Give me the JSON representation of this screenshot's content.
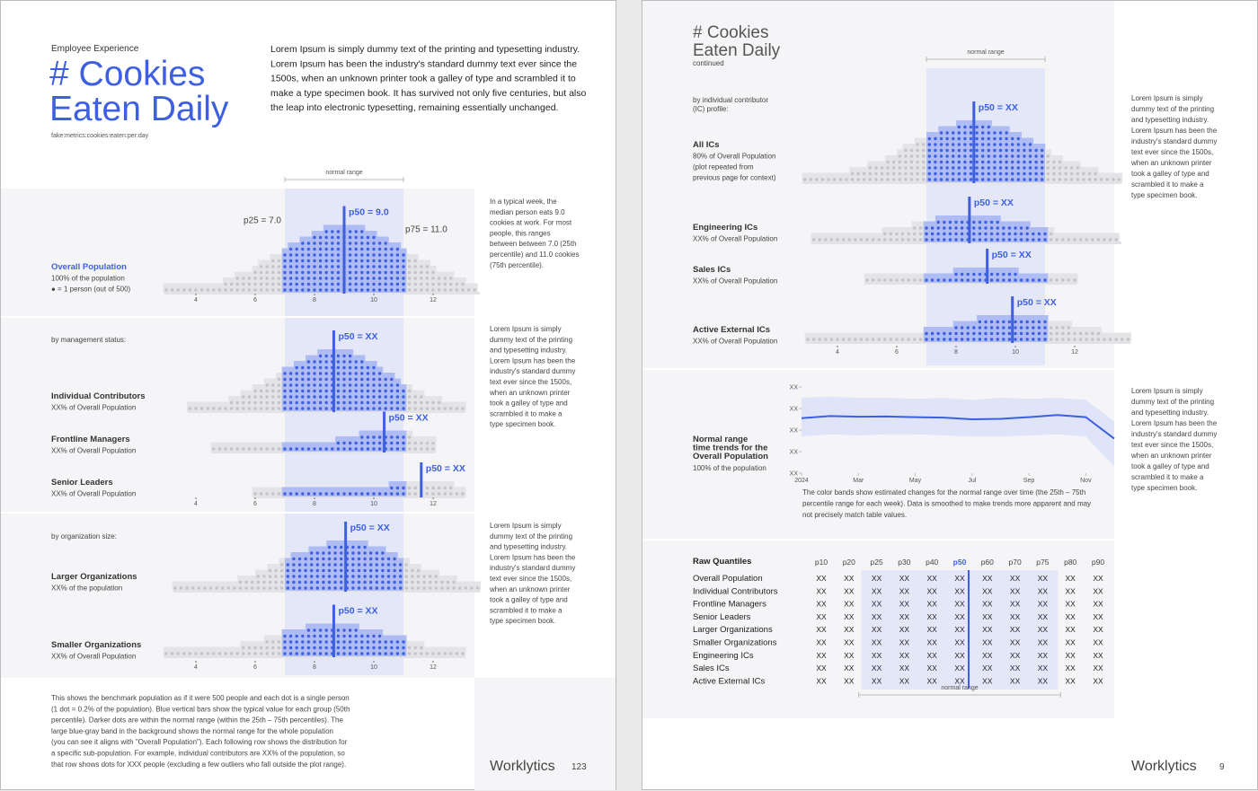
{
  "left_page": {
    "kicker": "Employee Experience",
    "title_lines": [
      "# Cookies",
      "Eaten Daily"
    ],
    "metric": "fake:metrics:cookies:eaten:per:day",
    "intro_lines": [
      "Lorem Ipsum is simply dummy text of the printing and typesetting industry.",
      "Lorem Ipsum has been the industry's standard dummy text ever since the",
      "1500s, when an unknown printer took a galley of type and scrambled it to",
      "make a type specimen book. It has survived not only five centuries, but also",
      "the leap into electronic typesetting, remaining essentially unchanged."
    ],
    "normal_range_label": "normal range",
    "normal_range": [
      7,
      11
    ],
    "xticks": [
      4,
      6,
      8,
      10,
      12
    ],
    "p25_label": "p25 = 7.0",
    "p75_label": "p75 = 11.0",
    "sections": [
      {
        "rows": [
          {
            "name": "Overall Population",
            "lines": [
              "100% of the population",
              "● = 1 person (out of 500)"
            ],
            "p50_label": "p50 = 9.0",
            "p50": 9,
            "dots_range": [
              3,
              13.5
            ],
            "dots_peak": 11
          }
        ],
        "note_lines": [
          "In a typical week, the",
          "median person eats 9.0",
          "cookies at work. For most",
          "people, this ranges",
          "between between 7.0 (25th",
          "percentile) and 11.0 cookies",
          "(75th percentile)."
        ]
      },
      {
        "heading": "by management status:",
        "rows": [
          {
            "name": "Individual Contributors",
            "lines": [
              "XX% of Overall Population"
            ],
            "p50_label": "p50 = XX",
            "p50": 8.65,
            "dots_range": [
              3.8,
              13
            ],
            "dots_peak": 10
          },
          {
            "name": "Frontline Managers",
            "lines": [
              "XX% of Overall Population"
            ],
            "p50_label": "p50 = XX",
            "p50": 10.35,
            "dots_range": [
              4.6,
              12
            ],
            "dots_peak": 3
          },
          {
            "name": "Senior Leaders",
            "lines": [
              "XX% of Overall Population"
            ],
            "p50_label": "p50 = XX",
            "p50": 11.6,
            "dots_range": [
              6,
              13
            ],
            "dots_peak": 2
          }
        ],
        "note_lines": [
          "Lorem Ipsum is simply",
          "dummy text of the printing",
          "and typesetting industry.",
          "Lorem Ipsum has been the",
          "industry's standard dummy",
          "text ever since the 1500s,",
          "when an unknown printer",
          "took a galley of type and",
          "scrambled it to make a",
          "type specimen book."
        ]
      },
      {
        "heading": "by organization size:",
        "rows": [
          {
            "name": "Larger Organizations",
            "lines": [
              "XX% of the population"
            ],
            "p50_label": "p50 = XX",
            "p50": 9.05,
            "dots_range": [
              3.3,
              13.5
            ],
            "dots_peak": 8
          },
          {
            "name": "Smaller Organizations",
            "lines": [
              "XX% of Overall Population"
            ],
            "p50_label": "p50 = XX",
            "p50": 8.65,
            "dots_range": [
              3,
              13
            ],
            "dots_peak": 5
          }
        ],
        "note_lines": [
          "Lorem Ipsum is simply",
          "dummy text of the printing",
          "and typesetting industry.",
          "Lorem Ipsum has been the",
          "industry's standard dummy",
          "text ever since the 1500s,",
          "when an unknown printer",
          "took a galley of type and",
          "scrambled it to make a",
          "type specimen book."
        ]
      }
    ],
    "footnote_lines": [
      "This shows the benchmark population as if it were 500 people and each dot is a single person",
      "(1 dot = 0.2% of the population). Blue vertical bars show the typical value for each group (50th",
      "percentile). Darker dots are within the normal range (within the 25th – 75th percentiles). The",
      "large blue-gray band in the background shows the normal range for the whole population",
      "(you can see it aligns with \"Overall Population\"). Each following row shows the distribution for",
      "a specific sub-population. For example, individual contributors are XX% of the population, so",
      "that row shows dots for XXX people (excluding a few outliers who fall outside the plot range)."
    ],
    "brand": "Worklytics",
    "page_number": 123
  },
  "right_page": {
    "title_lines": [
      "# Cookies",
      "Eaten Daily"
    ],
    "continued": "continued",
    "normal_range_label": "normal range",
    "xticks": [
      4,
      6,
      8,
      10,
      12
    ],
    "heading_lines": [
      "by individual contributor",
      "(IC) profile:"
    ],
    "rows": [
      {
        "name": "All ICs",
        "lines": [
          "80% of Overall Population",
          "(plot repeated from",
          "previous page for context)"
        ],
        "p50_label": "p50 = XX",
        "p50": 8.6,
        "dots_range": [
          2.9,
          13.5
        ],
        "dots_peak": 10
      },
      {
        "name": "Engineering ICs",
        "lines": [
          "XX% of Overall Population"
        ],
        "p50_label": "p50 = XX",
        "p50": 8.45,
        "dots_range": [
          3.2,
          13.5
        ],
        "dots_peak": 4
      },
      {
        "name": "Sales ICs",
        "lines": [
          "XX% of Overall Population"
        ],
        "p50_label": "p50 = XX",
        "p50": 9.05,
        "dots_range": [
          5,
          12
        ],
        "dots_peak": 2
      },
      {
        "name": "Active External ICs",
        "lines": [
          "XX% of Overall Population"
        ],
        "p50_label": "p50 = XX",
        "p50": 9.9,
        "dots_range": [
          3,
          13.8
        ],
        "dots_peak": 4
      }
    ],
    "note_lines": [
      "Lorem Ipsum is simply",
      "dummy text of the printing",
      "and typesetting industry.",
      "Lorem Ipsum has been the",
      "industry's standard dummy",
      "text ever since the 1500s,",
      "when an unknown printer",
      "took a galley of type and",
      "scrambled it to make a",
      "type specimen book."
    ],
    "trend": {
      "type": "line",
      "title_lines": [
        "Normal range",
        "time trends for the",
        "Overall Population"
      ],
      "subtitle": "100% of the population",
      "x": [
        "2024-01",
        "2024-02",
        "2024-03",
        "2024-04",
        "2024-05",
        "2024-06",
        "2024-07",
        "2024-08",
        "2024-09",
        "2024-10",
        "2024-11",
        "2024-12"
      ],
      "xlim": [
        "2024-01",
        "2024-12"
      ],
      "xticks": [
        {
          "value": "2024-01",
          "label": "2024"
        },
        {
          "value": "2024-03",
          "label": "Mar"
        },
        {
          "value": "2024-05",
          "label": "May"
        },
        {
          "value": "2024-07",
          "label": "Jul"
        },
        {
          "value": "2024-09",
          "label": "Sep"
        },
        {
          "value": "2024-11",
          "label": "Nov"
        }
      ],
      "ylim": [
        0,
        4
      ],
      "yticks": [
        {
          "value": 4,
          "label": "XX"
        },
        {
          "value": 3,
          "label": "XX"
        },
        {
          "value": 2,
          "label": "XX"
        },
        {
          "value": 1,
          "label": "XX"
        },
        {
          "value": 0,
          "label": "XX"
        }
      ],
      "p50": [
        2.55,
        2.65,
        2.62,
        2.63,
        2.6,
        2.58,
        2.5,
        2.52,
        2.6,
        2.7,
        2.6,
        1.6
      ],
      "p75": [
        3.5,
        3.55,
        3.5,
        3.5,
        3.45,
        3.5,
        3.4,
        3.5,
        3.45,
        3.5,
        3.4,
        2.4
      ],
      "p25": [
        1.7,
        1.8,
        1.75,
        1.8,
        1.8,
        1.75,
        1.7,
        1.7,
        1.75,
        1.8,
        1.7,
        0.3
      ],
      "color": "#3d5fe0",
      "caption_lines": [
        "The color bands show estimated changes for the normal range over time (the 25th – 75th",
        "percentile range for each week). Data is smoothed to make trends more apparent and may",
        "not precisely match table values."
      ]
    },
    "trend_note_lines": [
      "Lorem Ipsum is simply",
      "dummy text of the printing",
      "and typesetting industry.",
      "Lorem Ipsum has been the",
      "industry's standard dummy",
      "text ever since the 1500s,",
      "when an unknown printer",
      "took a galley of type and",
      "scrambled it to make a",
      "type specimen book."
    ],
    "table": {
      "title": "Raw Quantiles",
      "columns": [
        "p10",
        "p20",
        "p25",
        "p30",
        "p40",
        "p50",
        "p60",
        "p70",
        "p75",
        "p80",
        "p90"
      ],
      "rows": [
        {
          "name": "Overall Population",
          "values": [
            "XX",
            "XX",
            "XX",
            "XX",
            "XX",
            "XX",
            "XX",
            "XX",
            "XX",
            "XX",
            "XX"
          ]
        },
        {
          "name": "Individual Contributors",
          "values": [
            "XX",
            "XX",
            "XX",
            "XX",
            "XX",
            "XX",
            "XX",
            "XX",
            "XX",
            "XX",
            "XX"
          ]
        },
        {
          "name": "Frontline Managers",
          "values": [
            "XX",
            "XX",
            "XX",
            "XX",
            "XX",
            "XX",
            "XX",
            "XX",
            "XX",
            "XX",
            "XX"
          ]
        },
        {
          "name": "Senior Leaders",
          "values": [
            "XX",
            "XX",
            "XX",
            "XX",
            "XX",
            "XX",
            "XX",
            "XX",
            "XX",
            "XX",
            "XX"
          ]
        },
        {
          "name": "Larger Organizations",
          "values": [
            "XX",
            "XX",
            "XX",
            "XX",
            "XX",
            "XX",
            "XX",
            "XX",
            "XX",
            "XX",
            "XX"
          ]
        },
        {
          "name": "Smaller Organizations",
          "values": [
            "XX",
            "XX",
            "XX",
            "XX",
            "XX",
            "XX",
            "XX",
            "XX",
            "XX",
            "XX",
            "XX"
          ]
        },
        {
          "name": "Engineering ICs",
          "values": [
            "XX",
            "XX",
            "XX",
            "XX",
            "XX",
            "XX",
            "XX",
            "XX",
            "XX",
            "XX",
            "XX"
          ]
        },
        {
          "name": "Sales ICs",
          "values": [
            "XX",
            "XX",
            "XX",
            "XX",
            "XX",
            "XX",
            "XX",
            "XX",
            "XX",
            "XX",
            "XX"
          ]
        },
        {
          "name": "Active External ICs",
          "values": [
            "XX",
            "XX",
            "XX",
            "XX",
            "XX",
            "XX",
            "XX",
            "XX",
            "XX",
            "XX",
            "XX"
          ]
        }
      ],
      "normal_range_label": "normal range"
    },
    "brand": "Worklytics",
    "page_number": 9
  }
}
